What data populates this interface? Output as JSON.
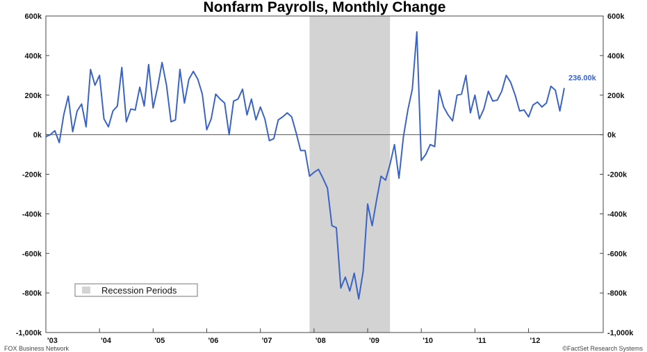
{
  "chart_data": {
    "type": "line",
    "title": "Nonfarm Payrolls, Monthly Change",
    "ylim": [
      -1000,
      600
    ],
    "yticks": [
      600,
      400,
      200,
      0,
      -200,
      -400,
      -600,
      -800,
      -1000
    ],
    "ytick_labels": [
      "600k",
      "400k",
      "200k",
      "0k",
      "-200k",
      "-400k",
      "-600k",
      "-800k",
      "-1,000k"
    ],
    "xticks": [
      "'03",
      "'04",
      "'05",
      "'06",
      "'07",
      "'08",
      "'09",
      "'10",
      "'11",
      "'12"
    ],
    "x_start": "2003-01",
    "x_end": "2012-09",
    "grid": false,
    "line_color": "#3a63c4",
    "recession": {
      "start": "2007-12",
      "end": "2009-06",
      "color": "#d3d3d3",
      "label": "Recession Periods"
    },
    "last_value_label": "236.00k",
    "series": [
      {
        "values": [
          -10,
          0,
          20,
          -40,
          100,
          195,
          15,
          120,
          155,
          40,
          330,
          250,
          300,
          80,
          40,
          120,
          145,
          340,
          65,
          130,
          125,
          240,
          145,
          355,
          135,
          240,
          365,
          250,
          65,
          75,
          330,
          160,
          280,
          320,
          280,
          205,
          25,
          80,
          205,
          180,
          160,
          0,
          170,
          180,
          230,
          100,
          180,
          75,
          140,
          80,
          -30,
          -20,
          75,
          90,
          110,
          90,
          10,
          -80,
          -80,
          -210,
          -190,
          -175,
          -220,
          -270,
          -460,
          -470,
          -775,
          -720,
          -790,
          -700,
          -830,
          -690,
          -350,
          -460,
          -330,
          -210,
          -230,
          -150,
          -50,
          -220,
          -10,
          125,
          230,
          520,
          -130,
          -100,
          -50,
          -60,
          225,
          140,
          100,
          70,
          200,
          205,
          300,
          110,
          200,
          80,
          130,
          220,
          170,
          175,
          220,
          300,
          265,
          200,
          120,
          125,
          90,
          150,
          165,
          140,
          160,
          245,
          225,
          120,
          236
        ]
      }
    ],
    "footer_left": "FOX Business Network",
    "footer_right": "©FactSet Research Systems"
  }
}
